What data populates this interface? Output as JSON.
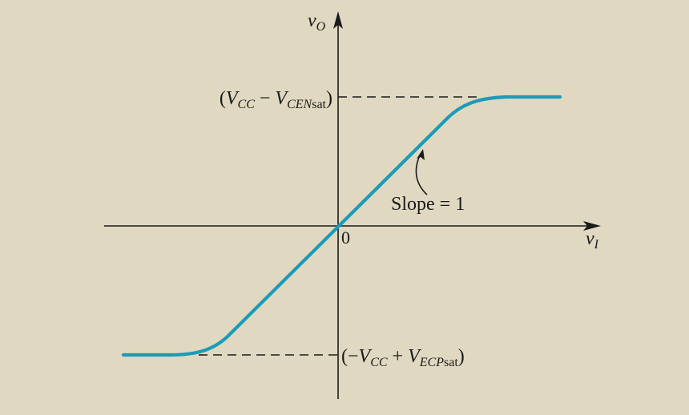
{
  "colors": {
    "background": "#e0d8c0",
    "curve": "#1b9bb8",
    "axis": "#1a1a1a"
  },
  "axes": {
    "y_label": {
      "base": "v",
      "sub": "O"
    },
    "x_label": {
      "base": "v",
      "sub": "I"
    },
    "origin_label": "0"
  },
  "levels": {
    "upper": {
      "open": "(",
      "v1": "V",
      "v1_sub": "CC",
      "op": " − ",
      "v2": "V",
      "v2_sub_italic": "CEN",
      "v2_sub_roman": "sat",
      "close": ")"
    },
    "lower": {
      "open": "(−",
      "v1": "V",
      "v1_sub": "CC",
      "op": " + ",
      "v2": "V",
      "v2_sub_italic": "ECP",
      "v2_sub_roman": "sat",
      "close": ")"
    }
  },
  "annotation": {
    "slope_label": "Slope = 1"
  }
}
